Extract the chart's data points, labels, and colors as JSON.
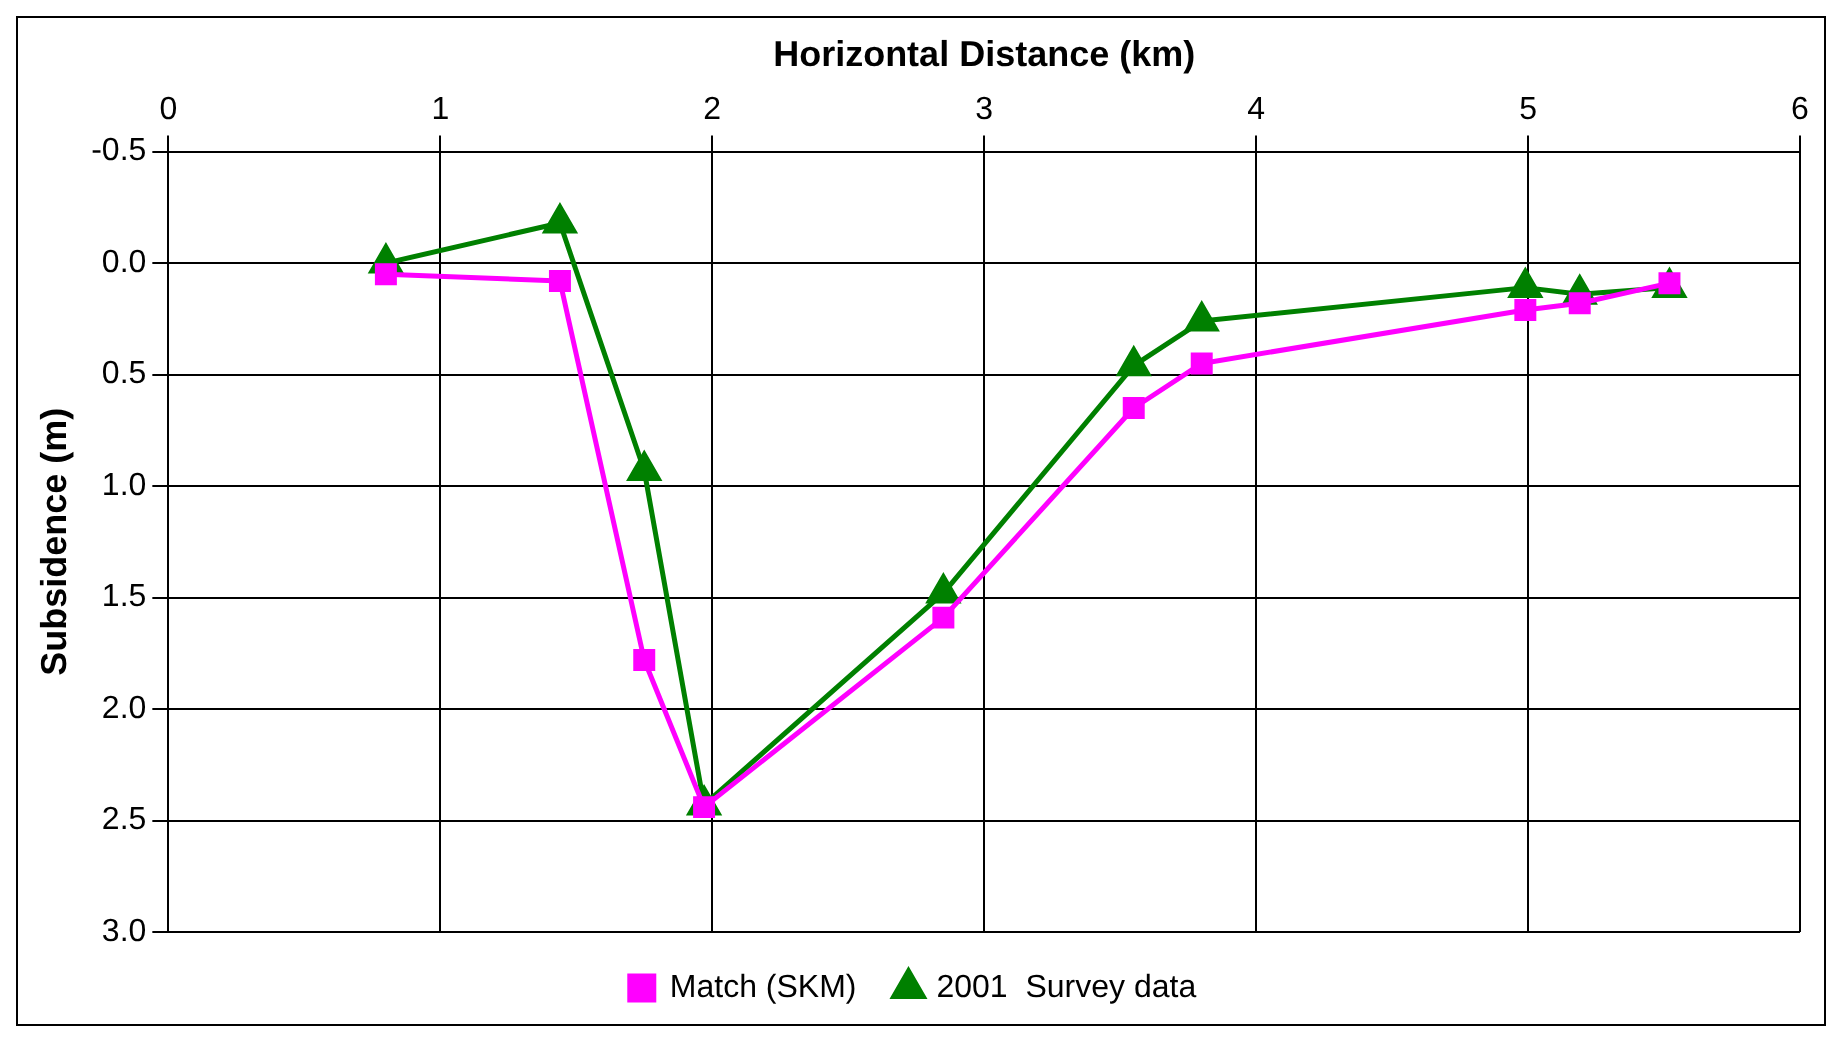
{
  "chart_data": {
    "type": "line",
    "xlabel": "Horizontal Distance (km)",
    "ylabel": "Subsidence (m)",
    "xlim": [
      0,
      6
    ],
    "xticks": [
      0,
      1,
      2,
      3,
      4,
      5,
      6
    ],
    "ylim": [
      3.0,
      -0.5
    ],
    "yticks": [
      -0.5,
      {
        "value": 0,
        "label": "0.0"
      },
      0.5,
      {
        "value": 1,
        "label": "1.0"
      },
      1.5,
      {
        "value": 2,
        "label": "2.0"
      },
      2.5,
      {
        "value": 3,
        "label": "3.0"
      }
    ],
    "grid": true,
    "legend": "bottom",
    "line_style": "solid",
    "series": [
      {
        "name": "2001  Survey data",
        "color": "#008000",
        "marker": "triangle",
        "x": [
          0.8,
          1.44,
          1.75,
          1.97,
          2.85,
          3.55,
          3.8,
          4.99,
          5.19,
          5.52
        ],
        "values": [
          0.0,
          -0.18,
          0.93,
          2.43,
          1.48,
          0.46,
          0.26,
          0.11,
          0.14,
          0.11
        ]
      },
      {
        "name": "Match (SKM)",
        "color": "#ff00ff",
        "marker": "square",
        "x": [
          0.8,
          1.44,
          1.75,
          1.97,
          2.85,
          3.55,
          3.8,
          4.99,
          5.19,
          5.52
        ],
        "values": [
          0.05,
          0.08,
          1.78,
          2.44,
          1.59,
          0.65,
          0.45,
          0.21,
          0.18,
          0.09
        ]
      }
    ]
  }
}
